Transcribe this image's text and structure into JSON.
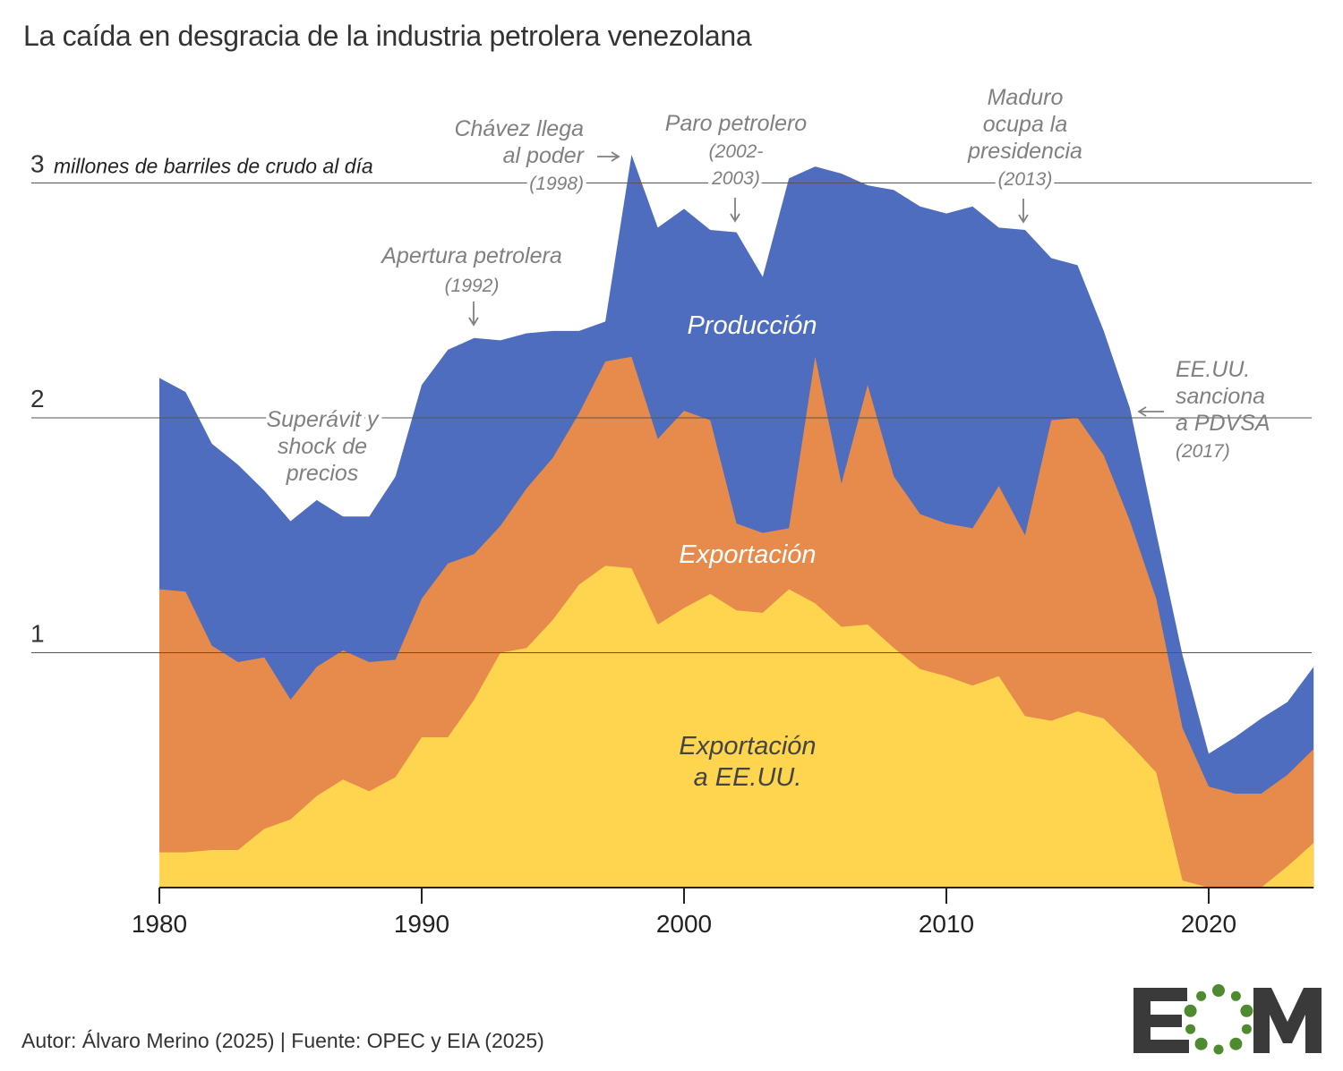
{
  "title": "La caída en desgracia de la industria petrolera venezolana",
  "source": "Autor: Álvaro Merino (2025) | Fuente: OPEC y EIA (2025)",
  "logo_text": "EOM",
  "colors": {
    "produccion": "#4E6DBE",
    "exportacion": "#E68B4B",
    "exportacion_eeuu": "#FFD54F",
    "annotation": "#808080",
    "axis": "#222222"
  },
  "chart_data": {
    "type": "area",
    "x": [
      1980,
      1981,
      1982,
      1983,
      1984,
      1985,
      1986,
      1987,
      1988,
      1989,
      1990,
      1991,
      1992,
      1993,
      1994,
      1995,
      1996,
      1997,
      1998,
      1999,
      2000,
      2001,
      2002,
      2003,
      2004,
      2005,
      2006,
      2007,
      2008,
      2009,
      2010,
      2011,
      2012,
      2013,
      2014,
      2015,
      2016,
      2017,
      2018,
      2019,
      2020,
      2021,
      2022,
      2023,
      2024
    ],
    "series": [
      {
        "name": "Producción",
        "values": [
          2.17,
          2.11,
          1.89,
          1.8,
          1.69,
          1.56,
          1.65,
          1.58,
          1.58,
          1.75,
          2.14,
          2.29,
          2.34,
          2.33,
          2.36,
          2.37,
          2.37,
          2.41,
          3.12,
          2.81,
          2.89,
          2.8,
          2.79,
          2.6,
          3.02,
          3.07,
          3.04,
          2.99,
          2.97,
          2.9,
          2.87,
          2.9,
          2.81,
          2.8,
          2.68,
          2.65,
          2.37,
          2.04,
          1.51,
          0.99,
          0.57,
          0.64,
          0.72,
          0.79,
          0.94
        ]
      },
      {
        "name": "Exportación",
        "values": [
          1.27,
          1.26,
          1.03,
          0.96,
          0.98,
          0.8,
          0.94,
          1.01,
          0.96,
          0.97,
          1.23,
          1.38,
          1.42,
          1.54,
          1.7,
          1.83,
          2.02,
          2.24,
          2.26,
          1.91,
          2.03,
          1.99,
          1.55,
          1.51,
          1.53,
          2.26,
          1.72,
          2.14,
          1.75,
          1.59,
          1.55,
          1.53,
          1.71,
          1.5,
          1.99,
          2.0,
          1.84,
          1.56,
          1.23,
          0.68,
          0.43,
          0.4,
          0.4,
          0.48,
          0.59
        ]
      },
      {
        "name": "Exportación a EE.UU.",
        "values": [
          0.15,
          0.15,
          0.16,
          0.16,
          0.25,
          0.29,
          0.39,
          0.46,
          0.41,
          0.47,
          0.64,
          0.64,
          0.8,
          1.0,
          1.02,
          1.14,
          1.29,
          1.37,
          1.36,
          1.12,
          1.19,
          1.25,
          1.18,
          1.17,
          1.27,
          1.21,
          1.11,
          1.12,
          1.02,
          0.93,
          0.9,
          0.86,
          0.9,
          0.73,
          0.71,
          0.75,
          0.72,
          0.61,
          0.49,
          0.03,
          0.0,
          0.0,
          0.0,
          0.09,
          0.19
        ]
      }
    ],
    "y_ticks": [
      "1",
      "2",
      "3"
    ],
    "y_unit_label": "millones de barriles de crudo al día",
    "x_ticks": [
      "1980",
      "1990",
      "2000",
      "2010",
      "2020"
    ],
    "xlim": [
      1980,
      2024
    ],
    "ylim": [
      0,
      3.2
    ],
    "series_labels": {
      "produccion": "Producción",
      "exportacion": "Exportación",
      "eeuu_line1": "Exportación",
      "eeuu_line2": "a EE.UU."
    },
    "annotations": {
      "superavit": {
        "lines": [
          "Superávit y",
          "shock de",
          "precios"
        ]
      },
      "apertura": {
        "lines": [
          "Apertura petrolera",
          "(1992)"
        ]
      },
      "chavez": {
        "lines": [
          "Chávez llega",
          "al poder",
          "(1998)"
        ]
      },
      "paro": {
        "lines": [
          "Paro petrolero",
          "(2002-",
          "2003)"
        ]
      },
      "maduro": {
        "lines": [
          "Maduro",
          "ocupa la",
          "presidencia",
          "(2013)"
        ]
      },
      "sanciones": {
        "lines": [
          "EE.UU.",
          "sanciona",
          "a PDVSA",
          "(2017)"
        ]
      }
    }
  }
}
